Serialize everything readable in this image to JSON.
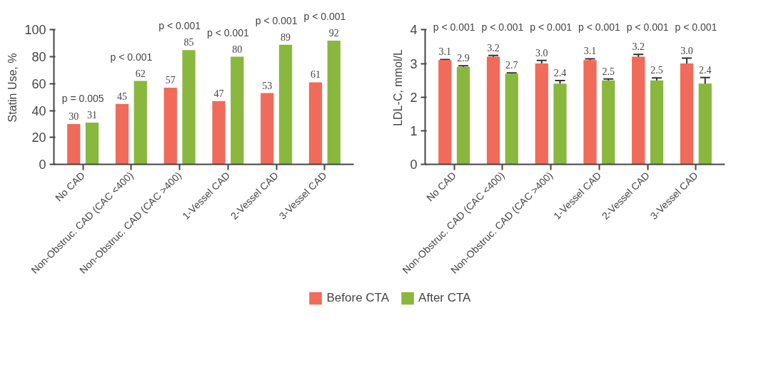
{
  "chart_data": [
    {
      "type": "bar",
      "ylabel": "Statin Use, %",
      "categories": [
        "No CAD",
        "Non-Obstruc. CAD (CAC <400)",
        "Non-Obstruc. CAD (CAC >400)",
        "1-Vessel CAD",
        "2-Vessel CAD",
        "3-Vessel CAD"
      ],
      "series": [
        {
          "name": "Before CTA",
          "color": "#f06b5a",
          "values": [
            30,
            45,
            57,
            47,
            53,
            61
          ]
        },
        {
          "name": "After CTA",
          "color": "#8ab83e",
          "values": [
            31,
            62,
            85,
            80,
            89,
            92
          ]
        }
      ],
      "ylim": [
        0,
        100
      ],
      "yticks": [
        0,
        20,
        40,
        60,
        80,
        100
      ],
      "data_labels": true,
      "grid": false,
      "legend": "bottom",
      "annotations": [
        "p = 0.005",
        "p < 0.001",
        "p < 0.001",
        "p < 0.001",
        "p < 0.001",
        "p < 0.001"
      ]
    },
    {
      "type": "bar",
      "ylabel": "LDL-C, mmol/L",
      "categories": [
        "No CAD",
        "Non-Obstruc. CAD (CAC <400)",
        "Non-Obstruc. CAD (CAC >400)",
        "1-Vessel CAD",
        "2-Vessel CAD",
        "3-Vessel CAD"
      ],
      "series": [
        {
          "color": "#f06b5a",
          "values": [
            3.1,
            3.2,
            3.0,
            3.1,
            3.2,
            3.0
          ],
          "value_labels": [
            "3.1",
            "3.2",
            "3.0",
            "3.1",
            "3.2",
            "3.0"
          ],
          "errors": [
            0.02,
            0.04,
            0.09,
            0.04,
            0.07,
            0.16
          ]
        },
        {
          "color": "#8ab83e",
          "values": [
            2.9,
            2.7,
            2.4,
            2.5,
            2.5,
            2.4
          ],
          "value_labels": [
            "2.9",
            "2.7",
            "2.4",
            "2.5",
            "2.5",
            "2.4"
          ],
          "errors": [
            0.03,
            0.02,
            0.09,
            0.04,
            0.07,
            0.18
          ]
        }
      ],
      "ylim": [
        0,
        4
      ],
      "yticks": [
        0,
        1,
        2,
        3,
        4
      ],
      "grid": false,
      "annotations": [
        "p < 0.001",
        "p < 0.001",
        "p < 0.001",
        "p < 0.001",
        "p < 0.001",
        "p < 0.001"
      ]
    }
  ]
}
